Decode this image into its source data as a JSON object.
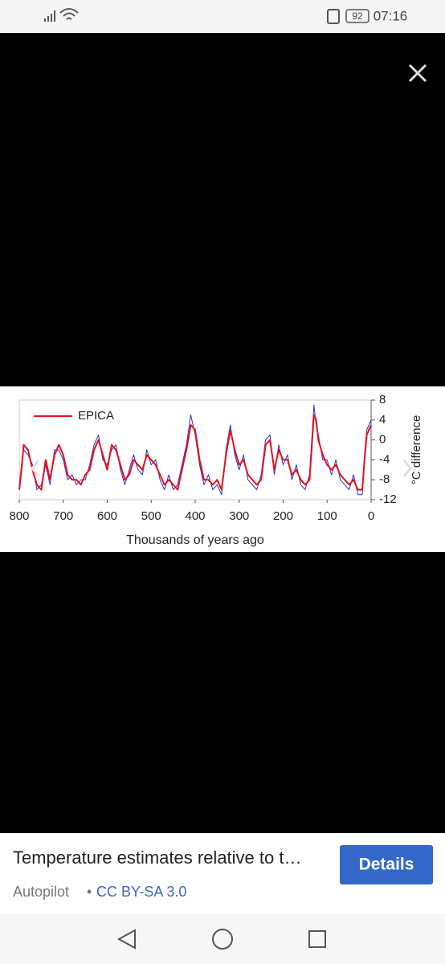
{
  "status_bar": {
    "battery": "92",
    "time": "07:16"
  },
  "chart_data": {
    "type": "line",
    "x": [
      800,
      795,
      790,
      780,
      770,
      760,
      750,
      740,
      730,
      720,
      710,
      700,
      690,
      680,
      670,
      660,
      650,
      640,
      630,
      620,
      610,
      600,
      590,
      580,
      570,
      560,
      550,
      540,
      530,
      520,
      510,
      500,
      490,
      480,
      470,
      460,
      450,
      440,
      430,
      420,
      410,
      400,
      390,
      380,
      370,
      360,
      350,
      340,
      330,
      320,
      310,
      300,
      290,
      280,
      270,
      260,
      250,
      240,
      230,
      220,
      210,
      200,
      190,
      180,
      170,
      160,
      150,
      140,
      130,
      125,
      120,
      110,
      100,
      90,
      80,
      70,
      60,
      50,
      40,
      30,
      20,
      15,
      10,
      5,
      0
    ],
    "series": [
      {
        "name": "EPICA",
        "color": "#e3121b",
        "values": [
          -10,
          -6,
          -1,
          -2,
          -6,
          -9,
          -10,
          -4,
          -8,
          -3,
          -1,
          -3,
          -7,
          -8,
          -8,
          -9,
          -7,
          -6,
          -2,
          0,
          -3,
          -6,
          -1,
          -2,
          -5,
          -8,
          -7,
          -4,
          -5,
          -6,
          -3,
          -4,
          -5,
          -7,
          -9,
          -8,
          -9,
          -10,
          -6,
          -2,
          3,
          2,
          -4,
          -8,
          -8,
          -9,
          -8,
          -10,
          -3,
          2,
          -2,
          -5,
          -4,
          -7,
          -8,
          -9,
          -8,
          -1,
          0,
          -6,
          -2,
          -4,
          -4,
          -7,
          -6,
          -8,
          -9,
          -8,
          5,
          4,
          0,
          -3,
          -5,
          -6,
          -5,
          -7,
          -8,
          -9,
          -8,
          -10,
          -10,
          -4,
          1,
          2,
          3
        ]
      },
      {
        "color": "#2b2bd6",
        "values": [
          -9,
          -5,
          -2,
          -3,
          -5,
          -10,
          -9,
          -5,
          -9,
          -2,
          -2,
          -4,
          -8,
          -7,
          -9,
          -8,
          -8,
          -5,
          -1,
          1,
          -4,
          -5,
          -2,
          -1,
          -6,
          -9,
          -6,
          -3,
          -6,
          -7,
          -2,
          -5,
          -4,
          -8,
          -10,
          -7,
          -10,
          -9,
          -5,
          -1,
          5,
          1,
          -5,
          -9,
          -7,
          -10,
          -9,
          -11,
          -2,
          3,
          -3,
          -6,
          -3,
          -8,
          -9,
          -10,
          -7,
          0,
          1,
          -7,
          -1,
          -5,
          -3,
          -8,
          -5,
          -9,
          -10,
          -7,
          7,
          3,
          1,
          -4,
          -4,
          -7,
          -4,
          -8,
          -9,
          -10,
          -7,
          -11,
          -11,
          -3,
          2,
          3,
          4
        ]
      }
    ],
    "x_label": "Thousands of years ago",
    "y_label": "°C difference",
    "xlim": [
      800,
      0
    ],
    "ylim": [
      -12,
      8
    ],
    "xticks": [
      800,
      700,
      600,
      500,
      400,
      300,
      200,
      100,
      0
    ],
    "yticks": [
      8,
      4,
      0,
      -4,
      -8,
      -12
    ],
    "legend": "upper left",
    "grid": false
  },
  "caption": {
    "title": "Temperature estimates relative to t…",
    "button": "Details",
    "author": "Autopilot",
    "separator": "•",
    "license": "CC BY-SA 3.0"
  }
}
